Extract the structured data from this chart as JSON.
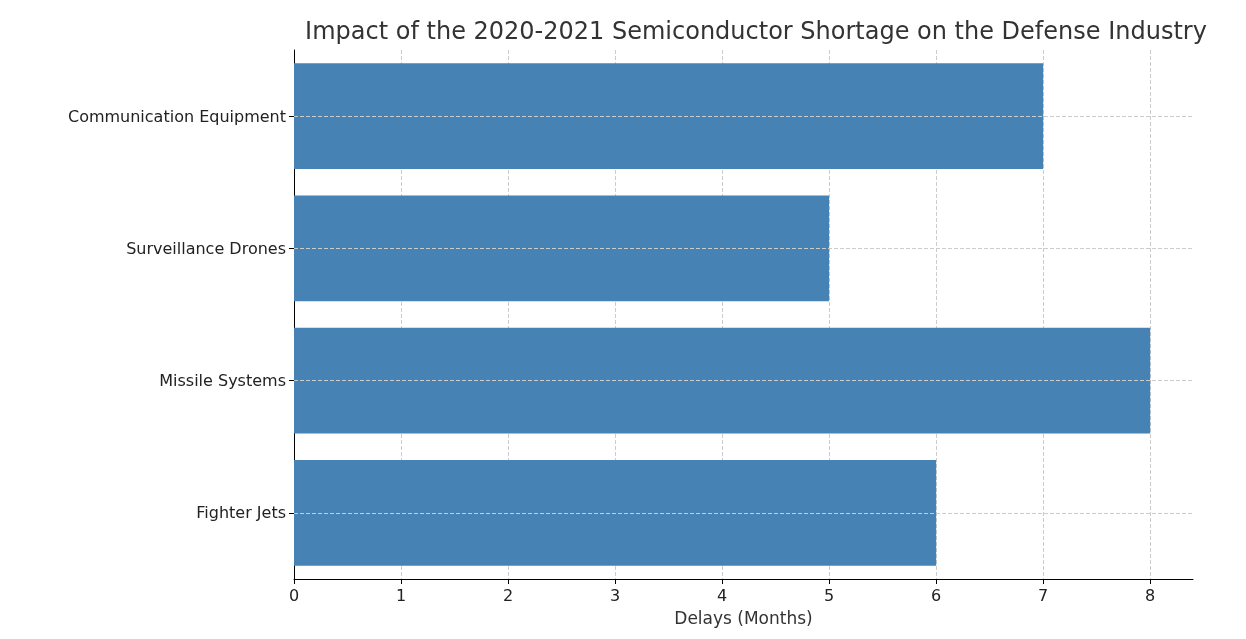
{
  "chart_data": {
    "type": "bar",
    "orientation": "horizontal",
    "title": "Impact of the 2020-2021 Semiconductor Shortage on the Defense Industry",
    "xlabel": "Delays (Months)",
    "categories": [
      "Communication Equipment",
      "Surveillance Drones",
      "Missile Systems",
      "Fighter Jets"
    ],
    "values": [
      7,
      5,
      8,
      6
    ],
    "color": "#4682b4",
    "xlim": [
      0,
      8.4
    ],
    "xticks": [
      0,
      1,
      2,
      3,
      4,
      5,
      6,
      7,
      8
    ],
    "grid": true
  }
}
